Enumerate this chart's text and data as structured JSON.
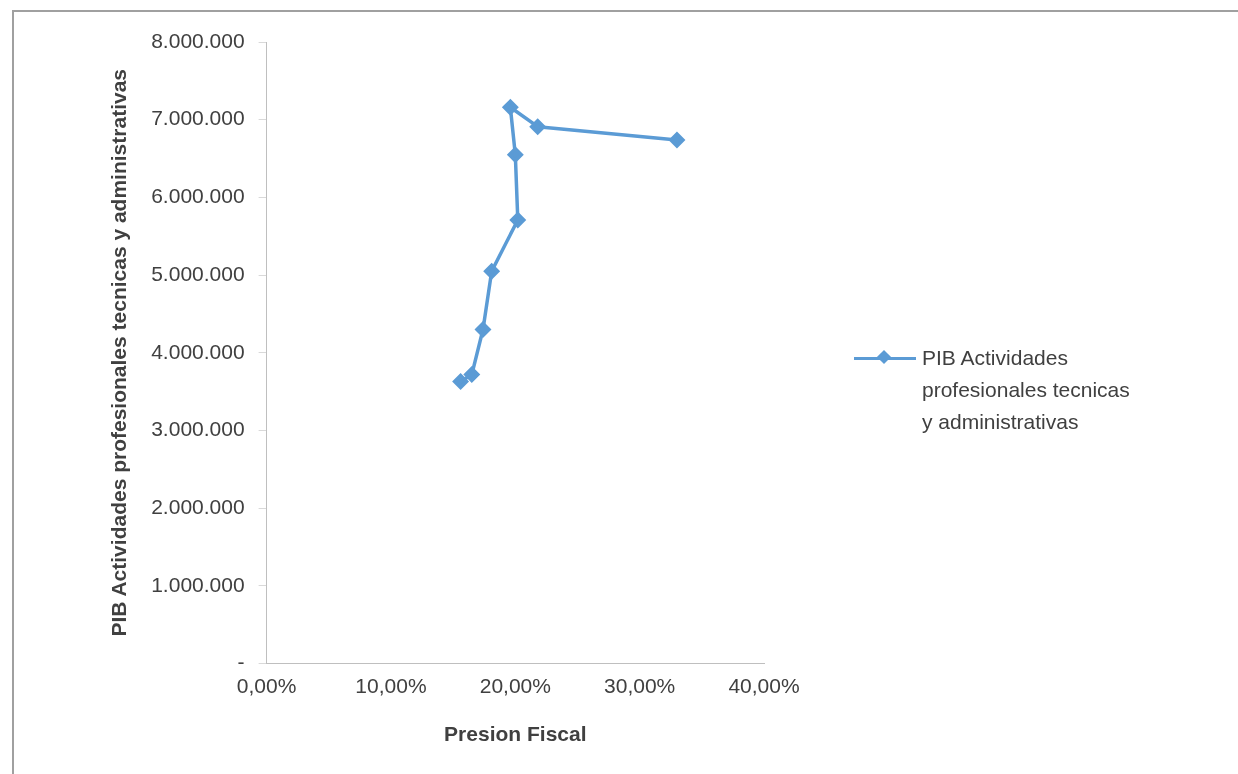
{
  "chart_data": {
    "type": "line",
    "xlabel": "Presion Fiscal",
    "ylabel": "PIB Actividades profesionales tecnicas y administrativas",
    "x": [
      15.6,
      16.5,
      17.4,
      18.1,
      20.2,
      20.0,
      19.6,
      21.8,
      33.0
    ],
    "series": [
      {
        "name": "PIB Actividades profesionales tecnicas y administrativas",
        "color": "#5b9bd5",
        "values": [
          3630000,
          3720000,
          4300000,
          5050000,
          5710000,
          6550000,
          7160000,
          6910000,
          6740000
        ]
      }
    ],
    "xlim": [
      0,
      40
    ],
    "xticks": [
      {
        "value": 0,
        "label": "0,00%"
      },
      {
        "value": 10,
        "label": "10,00%"
      },
      {
        "value": 20,
        "label": "20,00%"
      },
      {
        "value": 30,
        "label": "30,00%"
      },
      {
        "value": 40,
        "label": "40,00%"
      }
    ],
    "ylim": [
      0,
      8000000
    ],
    "yticks": [
      {
        "value": 0,
        "label": "-"
      },
      {
        "value": 1000000,
        "label": "1.000.000"
      },
      {
        "value": 2000000,
        "label": "2.000.000"
      },
      {
        "value": 3000000,
        "label": "3.000.000"
      },
      {
        "value": 4000000,
        "label": "4.000.000"
      },
      {
        "value": 5000000,
        "label": "5.000.000"
      },
      {
        "value": 6000000,
        "label": "6.000.000"
      },
      {
        "value": 7000000,
        "label": "7.000.000"
      },
      {
        "value": 8000000,
        "label": "8.000.000"
      }
    ],
    "grid": false,
    "legend": "right",
    "marker": "diamond",
    "line_style": "solid"
  }
}
